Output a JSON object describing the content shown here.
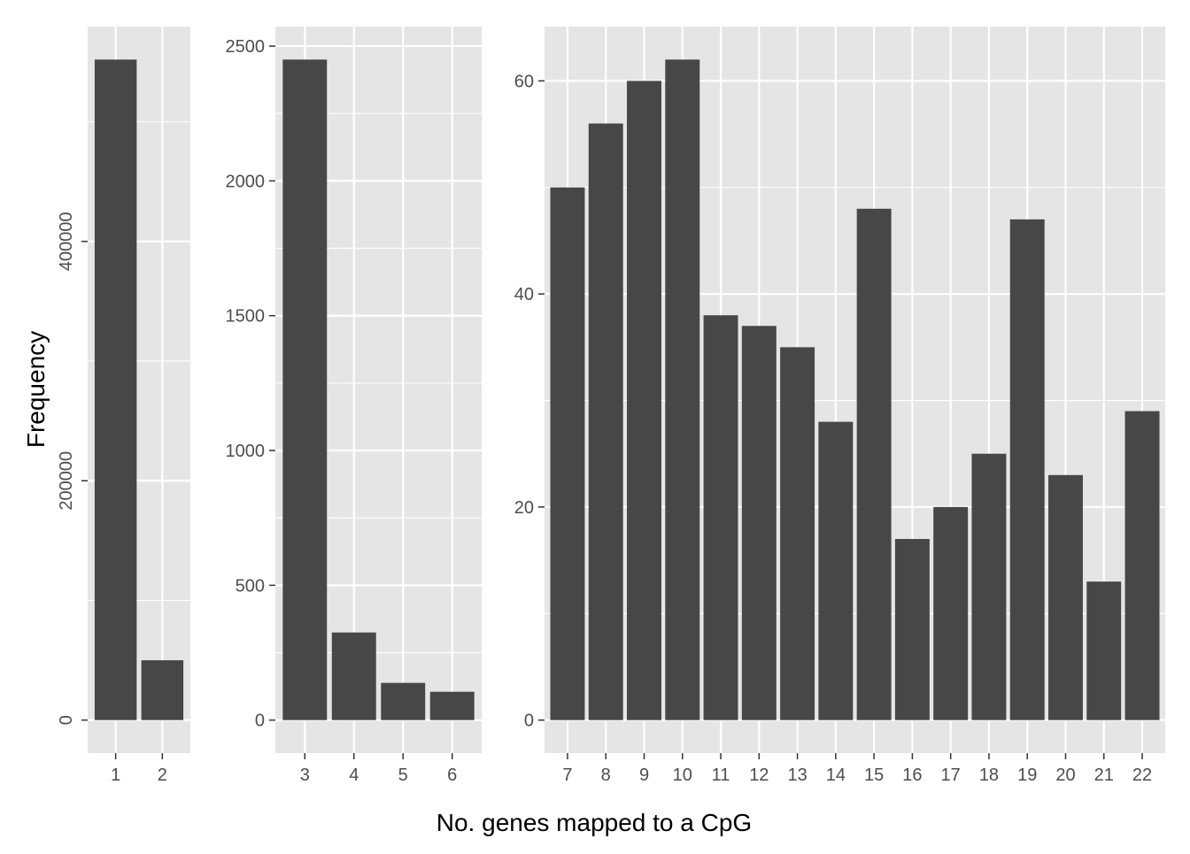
{
  "chart_data": [
    {
      "type": "bar",
      "categories": [
        "1",
        "2"
      ],
      "values": [
        552000,
        50000
      ],
      "ylim": [
        -27600,
        579600
      ],
      "y_ticks": [
        0,
        200000,
        400000
      ],
      "y_tick_labels": [
        "0",
        "200000",
        "400000"
      ],
      "y_tick_labels_rotated": true,
      "grid": true
    },
    {
      "type": "bar",
      "categories": [
        "3",
        "4",
        "5",
        "6"
      ],
      "values": [
        2450,
        325,
        138,
        105
      ],
      "ylim": [
        -122.5,
        2572.5
      ],
      "y_ticks": [
        0,
        500,
        1000,
        1500,
        2000,
        2500
      ],
      "y_tick_labels": [
        "0",
        "500",
        "1000",
        "1500",
        "2000",
        "2500"
      ],
      "grid": true
    },
    {
      "type": "bar",
      "categories": [
        "7",
        "8",
        "9",
        "10",
        "11",
        "12",
        "13",
        "14",
        "15",
        "16",
        "17",
        "18",
        "19",
        "20",
        "21",
        "22"
      ],
      "values": [
        50,
        56,
        60,
        62,
        38,
        37,
        35,
        28,
        48,
        17,
        20,
        25,
        47,
        23,
        13,
        29
      ],
      "ylim": [
        -3.1,
        65.1
      ],
      "y_ticks": [
        0,
        20,
        40,
        60
      ],
      "y_tick_labels": [
        "0",
        "20",
        "40",
        "60"
      ],
      "grid": true
    }
  ],
  "labels": {
    "xlabel": "No. genes mapped to a CpG",
    "ylabel": "Frequency"
  },
  "colors": {
    "bar": "#474747",
    "panel_background": "#e5e5e5",
    "grid": "#ffffff",
    "tick_text": "#4d4d4d",
    "axis_title": "#000000"
  }
}
